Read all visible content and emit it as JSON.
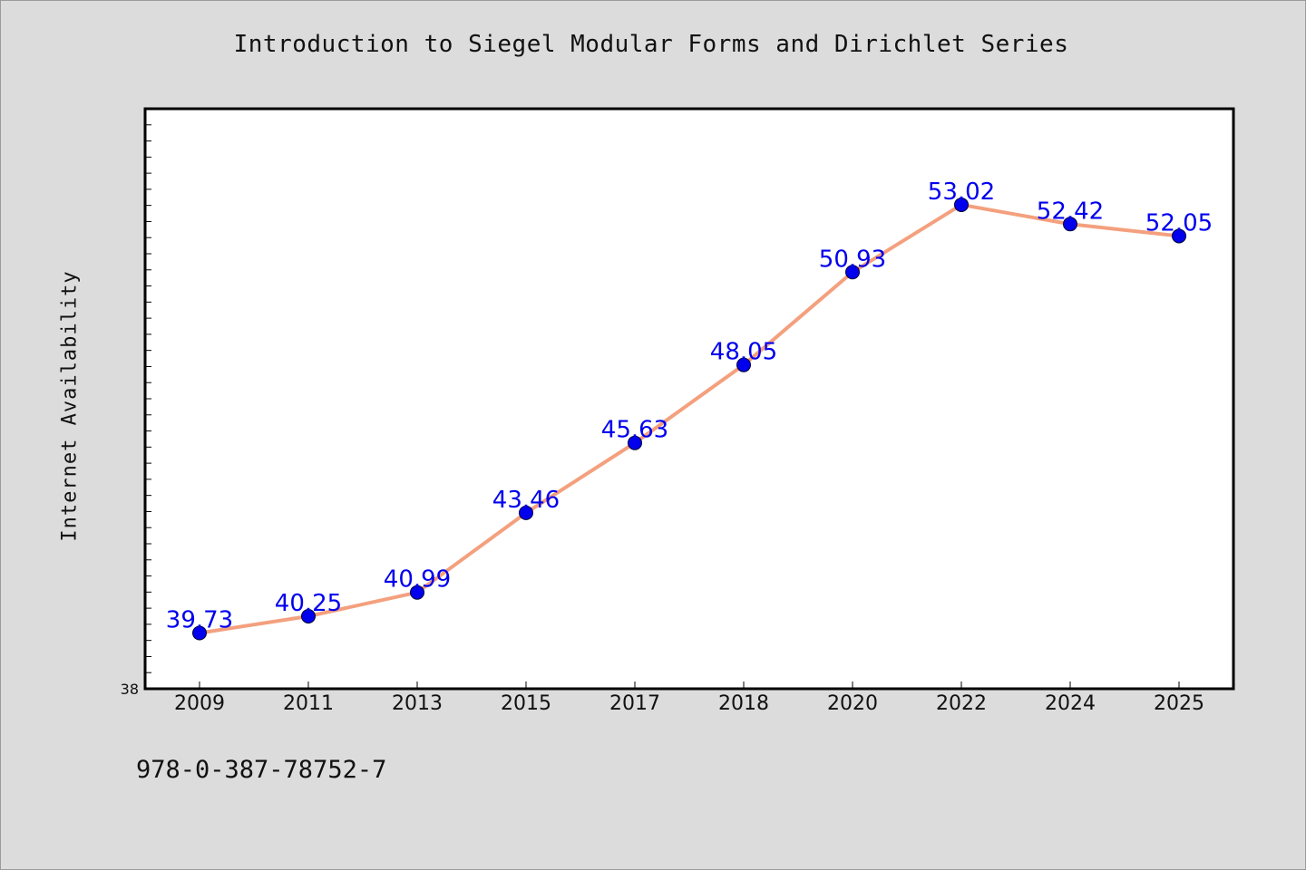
{
  "chart_data": {
    "type": "line",
    "title": "Introduction to Siegel Modular Forms and Dirichlet Series",
    "xlabel": "",
    "ylabel": "Internet Availability",
    "categories": [
      "2009",
      "2011",
      "2013",
      "2015",
      "2017",
      "2018",
      "2020",
      "2022",
      "2024",
      "2025"
    ],
    "series": [
      {
        "values": [
          39.73,
          40.25,
          40.99,
          43.46,
          45.63,
          48.05,
          50.93,
          53.02,
          52.42,
          52.05
        ]
      }
    ],
    "data_labels": [
      "39.73",
      "40.25",
      "40.99",
      "43.46",
      "45.63",
      "48.05",
      "50.93",
      "53.02",
      "52.42",
      "52.05"
    ],
    "ylim": [
      38,
      56
    ],
    "y_tick_label": "38",
    "grid": false,
    "legend": "none",
    "colors": {
      "line": "#f4a07e",
      "marker": "#0000ee",
      "label": "#0000ee",
      "plot_bg": "#ffffff",
      "page_bg": "#dcdcdc"
    }
  },
  "footer": {
    "isbn": "978-0-387-78752-7"
  }
}
